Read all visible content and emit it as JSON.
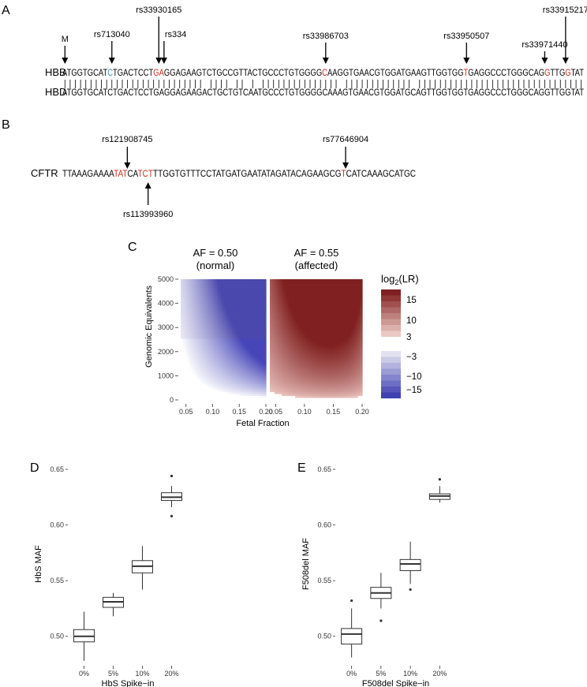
{
  "colors": {
    "red": "#cc2a1a",
    "blue": "#2a8fd8",
    "lr_pos": "#7f1f1f",
    "lr_neg": "#4040aa"
  },
  "panel_a": {
    "letter": "A",
    "hbb_label": "HBB",
    "hbd_label": "HBD",
    "hbb_seq": "ATGGTGCATCTGACTCCTGAGGAGAAGTCTGCCGTTACTGCCCTGTGGGGCAAGGTGAACGTGGATGAAGTTGGTGGTGAGGCCCTGGGCAGGTTGGTAT",
    "hbd_seq": "ATGGTGCATCTGACTCCTGAGGAGAAGACTGCTGTCAATGCCCTGTGGGGCAAAGTGAACGTGGATGCAGTTGGTGGTGAGGCCCTGGGCAGGTTGGTAT",
    "highlights": [
      {
        "pos": 9,
        "color": "blue"
      },
      {
        "pos": 18,
        "color": "red"
      },
      {
        "pos": 19,
        "color": "red"
      },
      {
        "pos": 50,
        "color": "red"
      },
      {
        "pos": 77,
        "color": "red"
      },
      {
        "pos": 92,
        "color": "red"
      },
      {
        "pos": 96,
        "color": "red"
      }
    ],
    "markers": [
      {
        "label": "M",
        "pos": 0,
        "tier": 0
      },
      {
        "label": "rs713040",
        "pos": 9,
        "tier": 1
      },
      {
        "label": "rs33930165",
        "pos": 18,
        "tier": 3
      },
      {
        "label": "rs334",
        "pos": 19,
        "tier": 1
      },
      {
        "label": "rs33986703",
        "pos": 50,
        "tier": 2
      },
      {
        "label": "rs33950507",
        "pos": 77,
        "tier": 2
      },
      {
        "label": "rs33971440",
        "pos": 92,
        "tier": 1
      },
      {
        "label": "rs33915217",
        "pos": 96,
        "tier": 3
      }
    ]
  },
  "panel_b": {
    "letter": "B",
    "cftr_label": "CFTR",
    "seq": "TTAAAGAAAATATCATCTTTGGTGTTTCCTATGATGAATATAGATACAGAAGCGTCATCAAAGCATGC",
    "highlights": [
      10,
      11,
      12,
      15,
      16,
      17,
      54
    ],
    "markers_above": [
      {
        "label": "rs121908745",
        "pos": 12
      },
      {
        "label": "rs77646904",
        "pos": 54
      }
    ],
    "markers_below": [
      {
        "label": "rs113993960",
        "pos": 16
      }
    ]
  },
  "panel_c": {
    "letter": "C",
    "left_title_1": "AF = 0.50",
    "left_title_2": "(normal)",
    "right_title_1": "AF = 0.55",
    "right_title_2": "(affected)",
    "ylabel": "Genomic Equivalents",
    "xlabel": "Fetal Fraction",
    "yticks": [
      "0",
      "1000",
      "2000",
      "3000",
      "4000",
      "5000"
    ],
    "xticks": [
      "0.05",
      "0.10",
      "0.15",
      "0.20"
    ],
    "legend_title_prefix": "log",
    "legend_title_sub": "2",
    "legend_title_suffix": "(LR)",
    "legend_pos_ticks": [
      "15",
      "10",
      "3"
    ],
    "legend_neg_ticks": [
      "−3",
      "−10",
      "−15"
    ]
  },
  "chart_data": [
    {
      "type": "box",
      "panel": "D",
      "categories": [
        "0%",
        "5%",
        "10%",
        "20%"
      ],
      "xlabel": "HbS Spike−in",
      "ylabel": "HbS MAF",
      "ylim": [
        0.475,
        0.655
      ],
      "yticks": [
        "0.50",
        "0.55",
        "0.60",
        "0.65"
      ],
      "boxes": [
        {
          "whisker_low": 0.478,
          "q1": 0.495,
          "median": 0.5,
          "q3": 0.506,
          "whisker_high": 0.522,
          "outliers": []
        },
        {
          "whisker_low": 0.518,
          "q1": 0.526,
          "median": 0.531,
          "q3": 0.535,
          "whisker_high": 0.539,
          "outliers": []
        },
        {
          "whisker_low": 0.542,
          "q1": 0.557,
          "median": 0.563,
          "q3": 0.568,
          "whisker_high": 0.581,
          "outliers": []
        },
        {
          "whisker_low": 0.616,
          "q1": 0.622,
          "median": 0.625,
          "q3": 0.629,
          "whisker_high": 0.635,
          "outliers": [
            0.644,
            0.608
          ]
        }
      ]
    },
    {
      "type": "box",
      "panel": "E",
      "categories": [
        "0%",
        "5%",
        "10%",
        "20%"
      ],
      "xlabel": "F508del Spike−in",
      "ylabel": "F508del MAF",
      "ylim": [
        0.475,
        0.655
      ],
      "yticks": [
        "0.50",
        "0.55",
        "0.60",
        "0.65"
      ],
      "boxes": [
        {
          "whisker_low": 0.481,
          "q1": 0.493,
          "median": 0.502,
          "q3": 0.507,
          "whisker_high": 0.525,
          "outliers": [
            0.532
          ]
        },
        {
          "whisker_low": 0.525,
          "q1": 0.534,
          "median": 0.539,
          "q3": 0.544,
          "whisker_high": 0.557,
          "outliers": [
            0.514
          ]
        },
        {
          "whisker_low": 0.547,
          "q1": 0.559,
          "median": 0.565,
          "q3": 0.569,
          "whisker_high": 0.585,
          "outliers": [
            0.542
          ]
        },
        {
          "whisker_low": 0.62,
          "q1": 0.623,
          "median": 0.626,
          "q3": 0.628,
          "whisker_high": 0.635,
          "outliers": [
            0.641
          ]
        }
      ]
    }
  ]
}
